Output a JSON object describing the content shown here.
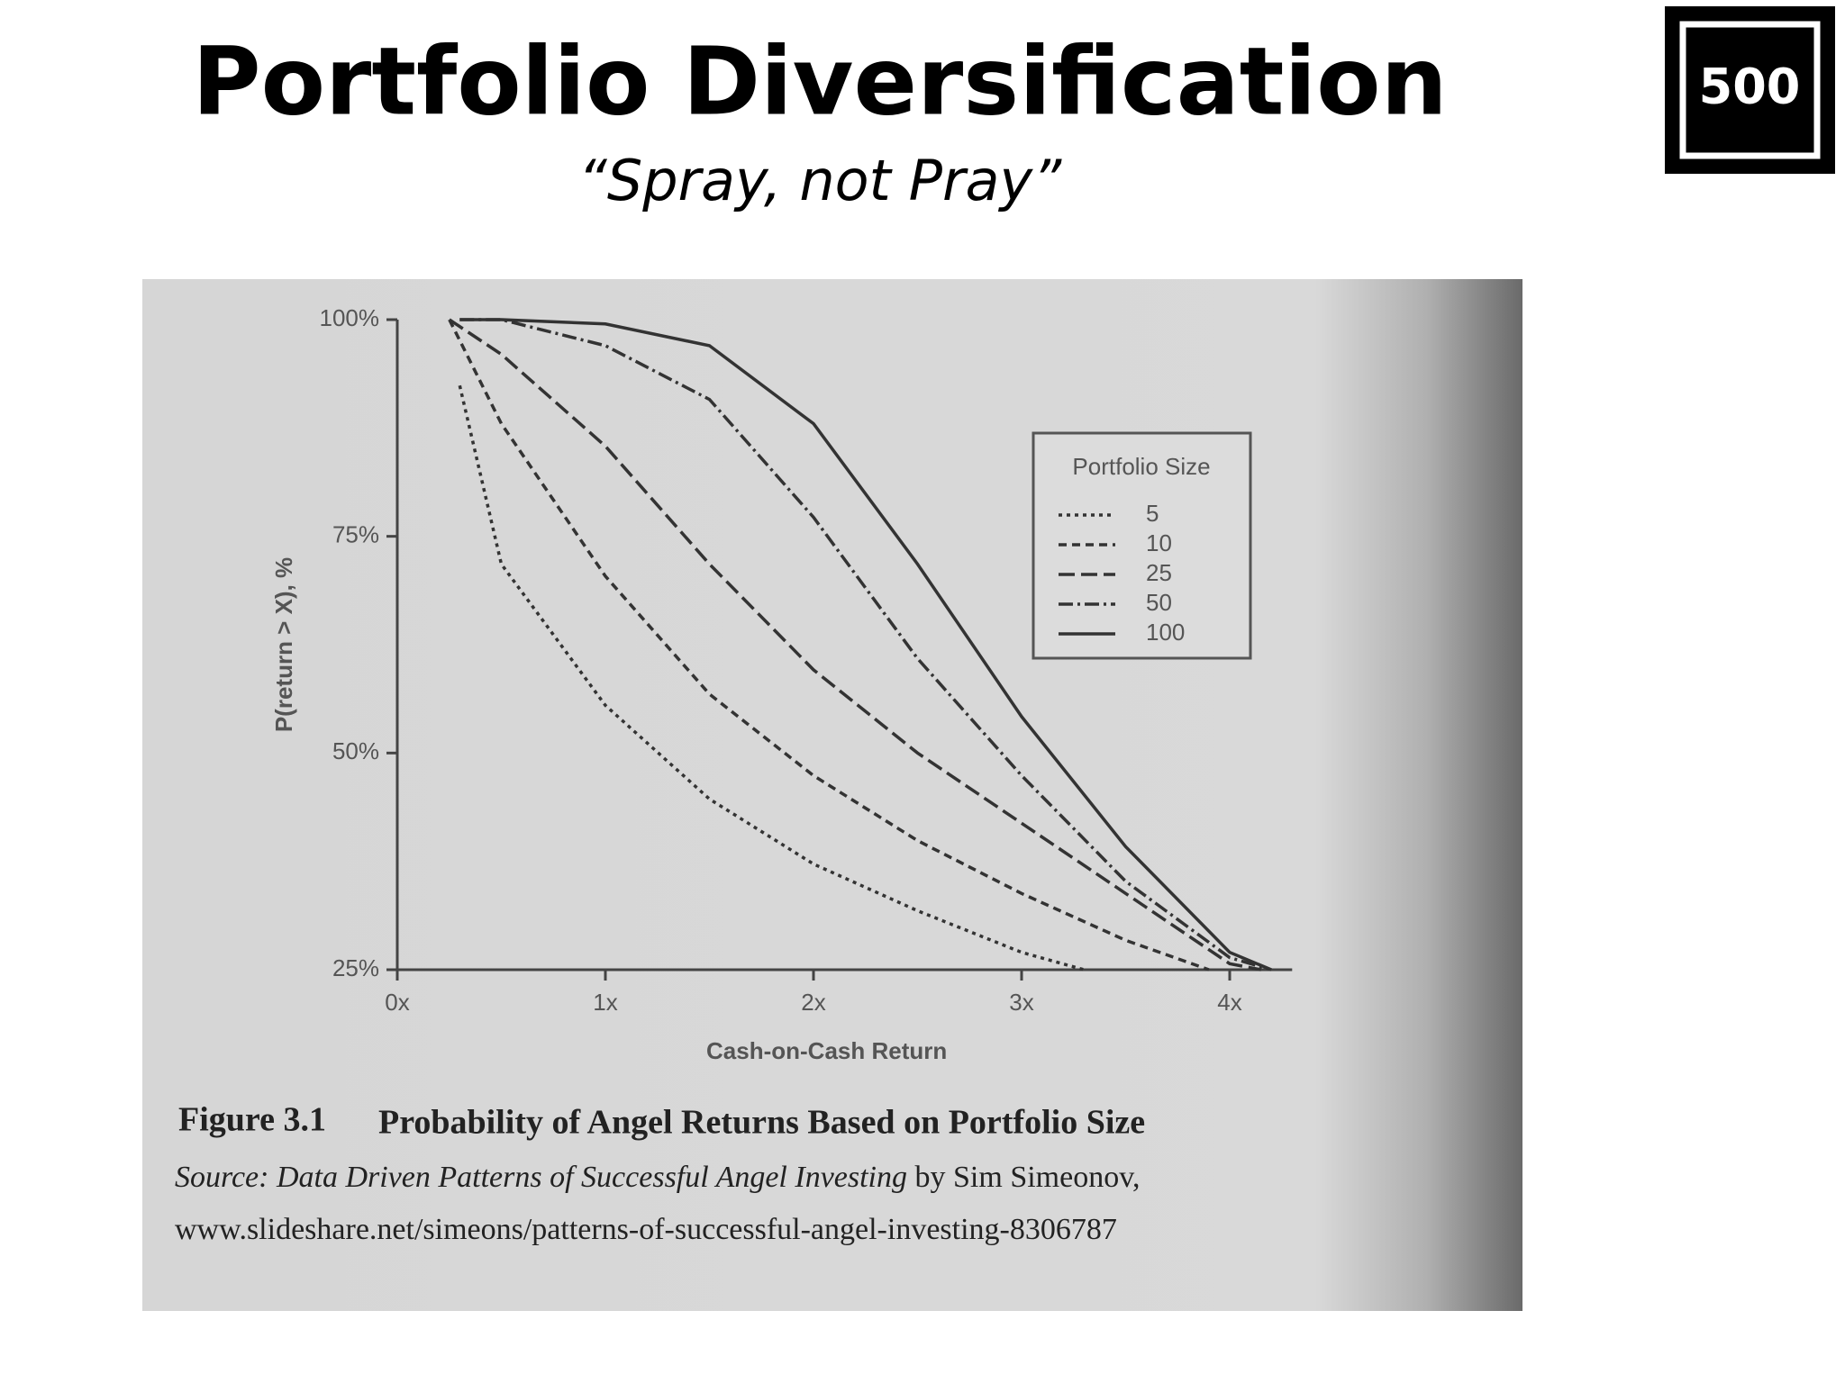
{
  "slide": {
    "title": "Portfolio Diversification",
    "subtitle": "“Spray, not Pray”",
    "logo": "500"
  },
  "chart_data": {
    "type": "line",
    "y_label": "P(return > X), %",
    "x_label": "Cash-on-Cash Return",
    "legend_title": "Portfolio Size",
    "legend_position": "upper right",
    "xlim": [
      0,
      4.3
    ],
    "ylim": [
      25,
      100
    ],
    "xticks": [
      {
        "value": 0,
        "label": "0x"
      },
      {
        "value": 1,
        "label": "1x"
      },
      {
        "value": 2,
        "label": "2x"
      },
      {
        "value": 3,
        "label": "3x"
      },
      {
        "value": 4,
        "label": "4x"
      }
    ],
    "yticks": [
      {
        "value": 25,
        "label": "25%"
      },
      {
        "value": 50,
        "label": "50%"
      },
      {
        "value": 75,
        "label": "75%"
      },
      {
        "value": 100,
        "label": "100%"
      }
    ],
    "series": [
      {
        "name": "5",
        "color": "#333333",
        "dash": "4,5",
        "x": [
          0.3,
          0.5,
          1.0,
          1.5,
          2.0,
          2.5,
          3.0,
          3.3
        ],
        "values": [
          92.4,
          71.8,
          55.5,
          44.7,
          37.2,
          31.8,
          27,
          25
        ]
      },
      {
        "name": "10",
        "color": "#333333",
        "dash": "9,6",
        "x": [
          0.25,
          0.5,
          1.0,
          1.5,
          2.0,
          2.5,
          3.0,
          3.5,
          3.9
        ],
        "values": [
          100,
          88,
          70.4,
          56.8,
          47.4,
          39.9,
          33.8,
          28.4,
          25
        ]
      },
      {
        "name": "25",
        "color": "#333333",
        "dash": "18,7",
        "x": [
          0.25,
          0.5,
          1.0,
          1.5,
          2.0,
          2.5,
          3.0,
          3.5,
          4.0,
          4.15
        ],
        "values": [
          100,
          96,
          85.4,
          71.8,
          59.6,
          50,
          41.9,
          33.8,
          25.7,
          25
        ]
      },
      {
        "name": "50",
        "color": "#333333",
        "dash": "16,5,3,5",
        "x": [
          0.3,
          0.5,
          1.0,
          1.5,
          2.0,
          2.5,
          3.0,
          3.5,
          4.0,
          4.2
        ],
        "values": [
          100,
          100,
          97,
          90.8,
          77.2,
          60.9,
          47.4,
          35.2,
          26.4,
          25
        ]
      },
      {
        "name": "100",
        "color": "#333333",
        "dash": "none",
        "x": [
          0.3,
          0.5,
          1.0,
          1.5,
          2.0,
          2.5,
          3.0,
          3.5,
          4.0,
          4.2
        ],
        "values": [
          100,
          100,
          99.5,
          97,
          88,
          71.8,
          54.2,
          39.2,
          27,
          25
        ]
      }
    ]
  },
  "caption": {
    "figure": "Figure 3.1",
    "title": "Probability of Angel Returns Based on Portfolio Size",
    "source_label": "Source:",
    "source_title": "Data Driven Patterns of Successful Angel Investing",
    "source_author": "by Sim Simeonov,",
    "source_url": "www.slideshare.net/simeons/patterns-of-successful-angel-investing-8306787"
  }
}
